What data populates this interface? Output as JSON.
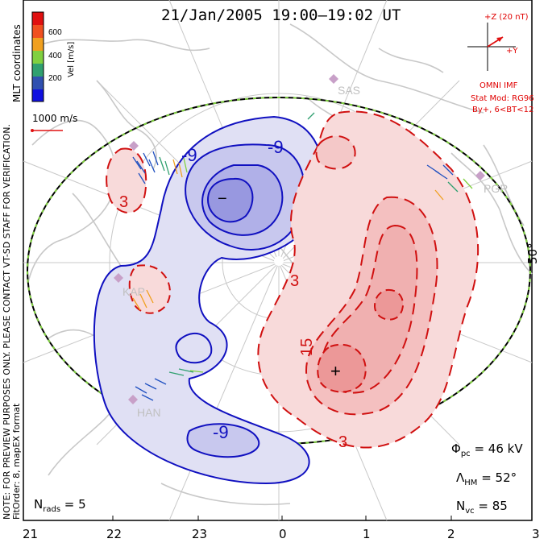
{
  "title": "21/Jan/2005 19:00–19:02 UT",
  "colorbar": {
    "label": "Vel [m/s]",
    "ticks": [
      "600",
      "400",
      "200"
    ],
    "colors": [
      "#e01010",
      "#f05020",
      "#f0a020",
      "#80d040",
      "#30a070",
      "#3050b0",
      "#1010e0"
    ]
  },
  "coords_label": "MLT coordinates",
  "velocity_scale": "1000 m/s",
  "imf": {
    "z_label": "+Z (20 nT)",
    "y_label": "+Y",
    "source": "OMNI IMF",
    "model": "Stat Mod: RG96",
    "model_cond": "By+, 6<BT<12"
  },
  "notes": {
    "preview": "NOTE: FOR PREVIEW PURPOSES ONLY. PLEASE CONTACT VT-SD STAFF FOR VERIFICATION.",
    "fit": "FitOrder: 8, mapEX format"
  },
  "latitude_label": "50°",
  "stations": [
    "SAS",
    "PGR",
    "KAP",
    "HAN"
  ],
  "contours": {
    "neg_labels": [
      "-9",
      "-9",
      "-9",
      "−"
    ],
    "pos_labels": [
      "3",
      "3",
      "3",
      "15",
      "+"
    ]
  },
  "stats": {
    "phi_sym": "Φ",
    "phi_sub": "pc",
    "phi_val": " = 46 kV",
    "lam_sym": "Λ",
    "lam_sub": "HM",
    "lam_val": " = 52°",
    "nvc_sym": "N",
    "nvc_sub": "vc",
    "nvc_val": " = 85",
    "nrads_sym": "N",
    "nrads_sub": "rads",
    "nrads_val": " = 5"
  },
  "mlt_ticks": [
    "21",
    "22",
    "23",
    "0",
    "1",
    "2",
    "3"
  ],
  "colors": {
    "neg_line": "#1010c0",
    "neg_fill": "#e0e0f4",
    "neg_fill2": "#b0b0e8",
    "pos_line": "#d01010",
    "pos_fill": "#f8dada",
    "pos_fill2": "#f0a8a8",
    "coast": "#c8c8c8"
  }
}
